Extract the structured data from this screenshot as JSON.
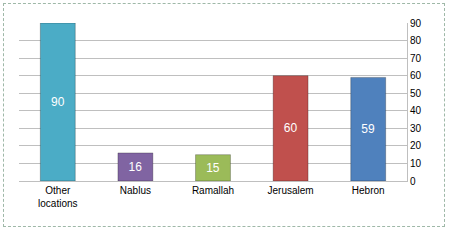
{
  "chart_data": {
    "type": "bar",
    "categories": [
      "Other locations",
      "Nablus",
      "Ramallah",
      "Jerusalem",
      "Hebron"
    ],
    "values": [
      90,
      16,
      15,
      60,
      59
    ],
    "colors": [
      "#4bacc6",
      "#8064a2",
      "#9bbb59",
      "#c0504d",
      "#4f81bd"
    ],
    "ylim": [
      0,
      90
    ],
    "yticks": [
      0,
      10,
      20,
      30,
      40,
      50,
      60,
      70,
      80,
      90
    ],
    "grid": true,
    "data_labels": true
  }
}
